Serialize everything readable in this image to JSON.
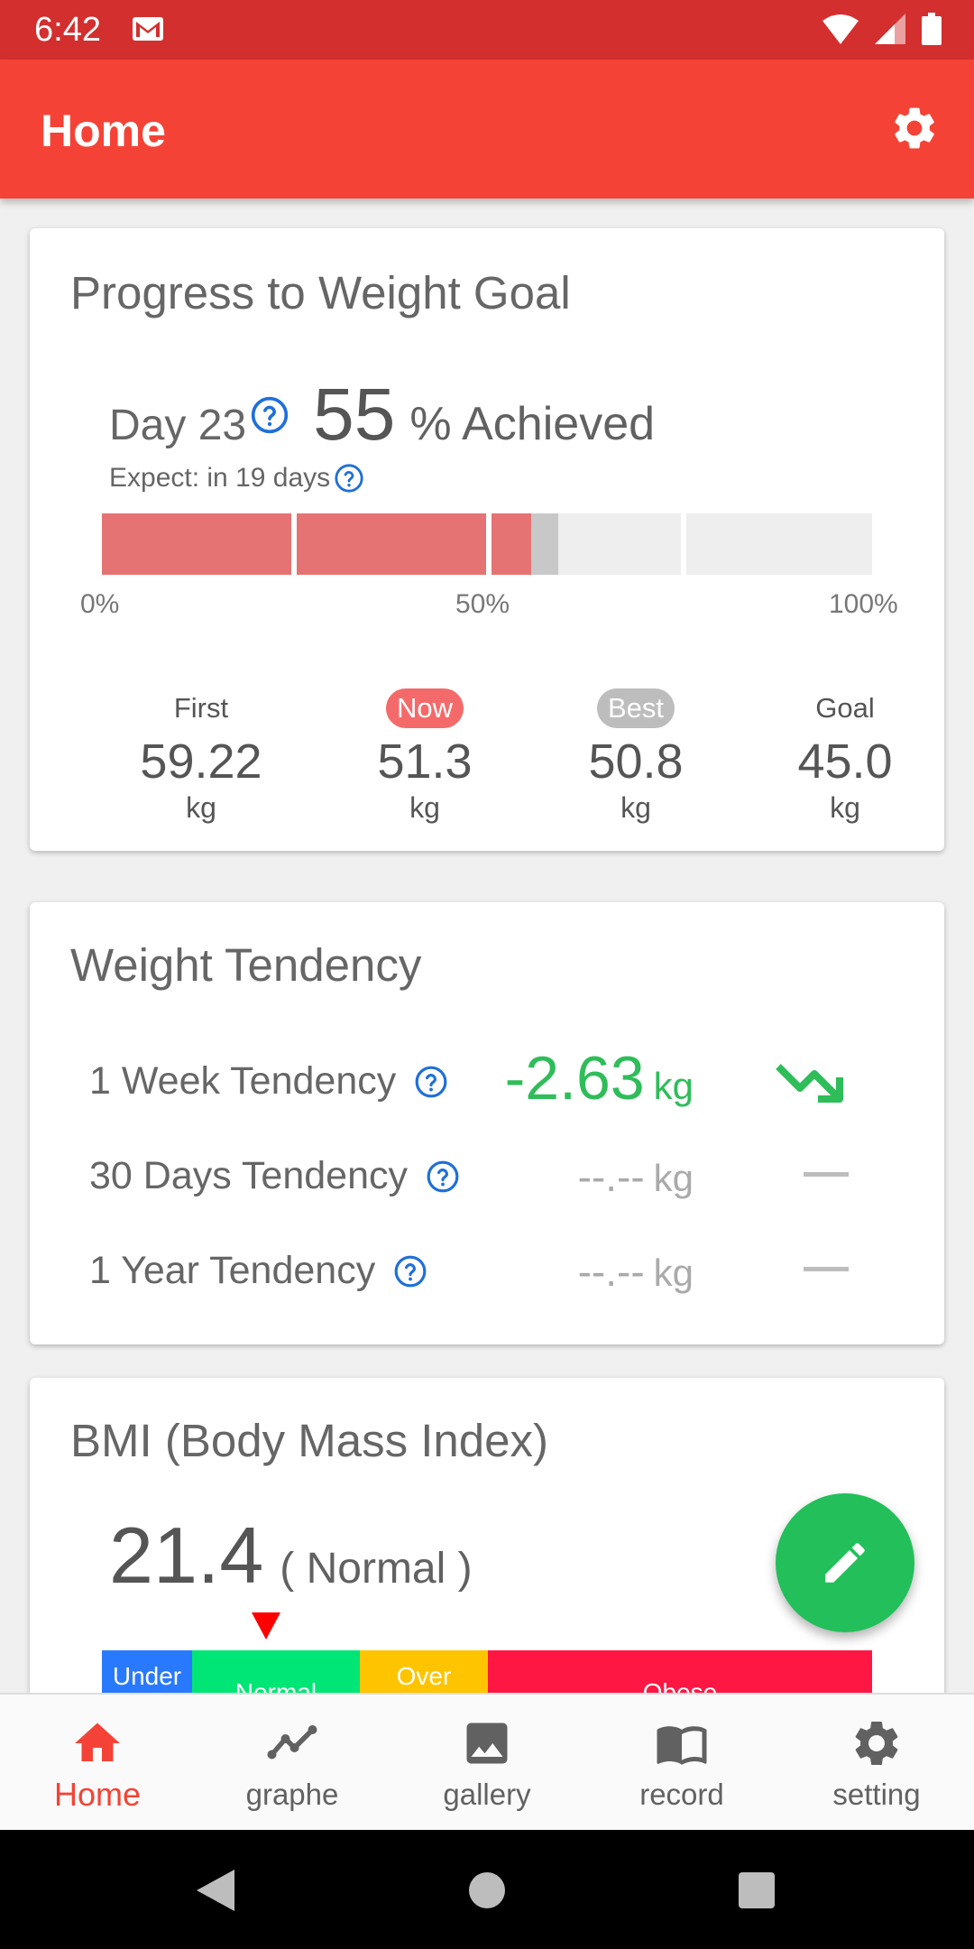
{
  "status_bar": {
    "time": "6:42"
  },
  "app_bar": {
    "title": "Home"
  },
  "progress_card": {
    "title": "Progress to Weight Goal",
    "day": "Day 23",
    "percent": "55",
    "achieved": "% Achieved",
    "expect": "Expect: in 19 days",
    "progress_fraction": 0.55,
    "bar_labels": [
      "0%",
      "50%",
      "100%"
    ],
    "stats": [
      {
        "label": "First",
        "value": "59.22",
        "unit": "kg"
      },
      {
        "label": "Now",
        "value": "51.3",
        "unit": "kg"
      },
      {
        "label": "Best",
        "value": "50.8",
        "unit": "kg"
      },
      {
        "label": "Goal",
        "value": "45.0",
        "unit": "kg"
      }
    ]
  },
  "tendency_card": {
    "title": "Weight Tendency",
    "rows": [
      {
        "label": "1 Week Tendency",
        "value": "-2.63",
        "unit": "kg"
      },
      {
        "label": "30 Days Tendency",
        "value": "--.--",
        "unit": "kg"
      },
      {
        "label": "1 Year Tendency",
        "value": "--.--",
        "unit": "kg"
      }
    ]
  },
  "bmi_card": {
    "title": "BMI (Body Mass Index)",
    "value": "21.4",
    "class": "( Normal )",
    "segments": [
      {
        "label": "Under Weight",
        "color": "#2979ff"
      },
      {
        "label": "Normal",
        "color": "#00e676"
      },
      {
        "label": "Over Weight",
        "color": "#ffc400"
      },
      {
        "label": "Obese",
        "color": "#ff1744"
      }
    ]
  },
  "bottom_nav": {
    "items": [
      {
        "label": "Home",
        "icon": "home-icon"
      },
      {
        "label": "graphe",
        "icon": "chart-line-icon"
      },
      {
        "label": "gallery",
        "icon": "image-icon"
      },
      {
        "label": "record",
        "icon": "book-icon"
      },
      {
        "label": "setting",
        "icon": "gear-icon"
      }
    ]
  },
  "colors": {
    "primary": "#f44336",
    "status_bar": "#d32f2f",
    "progress_fill": "#e57373",
    "progress_shade": "#c8c8c8",
    "progress_empty": "#eeeeee",
    "now_badge": "#f46a6a",
    "best_badge": "#bdbdbd",
    "tendency_down": "#2ebd59",
    "fab": "#22bf5a",
    "help": "#1e6fd9"
  }
}
